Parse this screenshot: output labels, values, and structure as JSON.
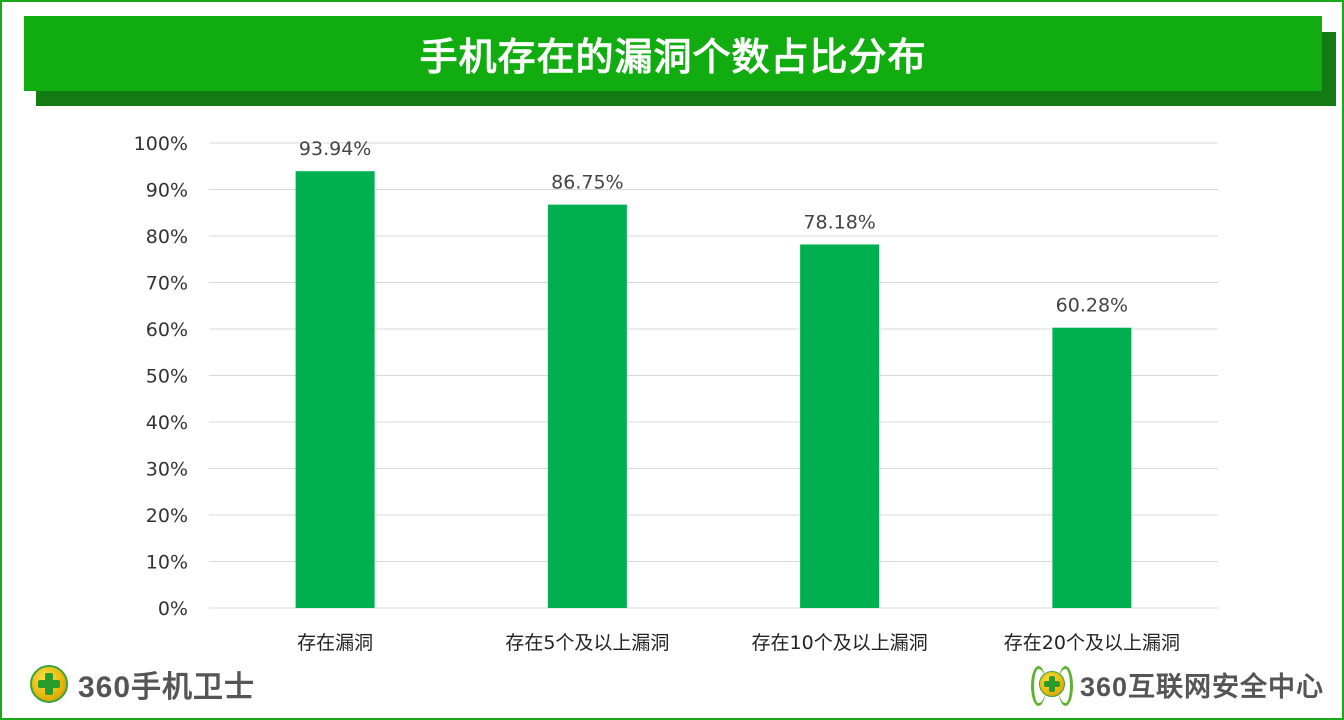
{
  "title": "手机存在的漏洞个数占比分布",
  "colors": {
    "bar": "#00b050",
    "title_bg": "#11ad10",
    "frame": "#18a81a",
    "grid": "#d9d9d9"
  },
  "chart_data": {
    "type": "bar",
    "title": "手机存在的漏洞个数占比分布",
    "categories": [
      "存在漏洞",
      "存在5个及以上漏洞",
      "存在10个及以上漏洞",
      "存在20个及以上漏洞"
    ],
    "values": [
      93.94,
      86.75,
      78.18,
      60.28
    ],
    "value_labels": [
      "93.94%",
      "86.75%",
      "78.18%",
      "60.28%"
    ],
    "yticks": [
      "0%",
      "10%",
      "20%",
      "30%",
      "40%",
      "50%",
      "60%",
      "70%",
      "80%",
      "90%",
      "100%"
    ],
    "ylim": [
      0,
      100
    ],
    "grid": true,
    "legend": "none",
    "xlabel": "",
    "ylabel": ""
  },
  "footer": {
    "left_logo_text": "360手机卫士",
    "right_logo_text": "360互联网安全中心"
  }
}
